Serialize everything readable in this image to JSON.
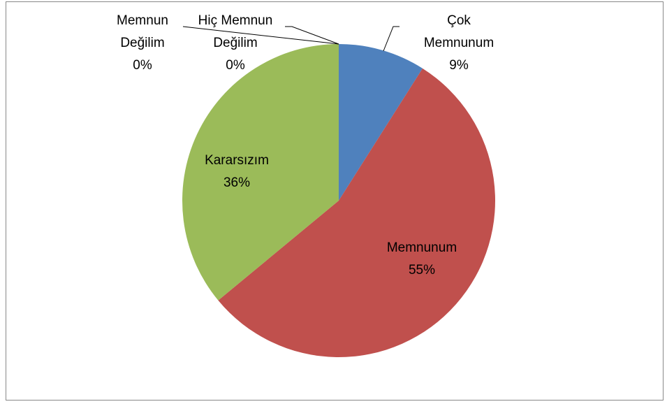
{
  "chart_data": {
    "type": "pie",
    "categories": [
      "Çok Memnunum",
      "Memnunum",
      "Kararsızım",
      "Memnun Değilim",
      "Hiç Memnun Değilim"
    ],
    "values": [
      9,
      55,
      36,
      0,
      0
    ],
    "value_labels": [
      "9%",
      "55%",
      "36%",
      "0%",
      "0%"
    ],
    "colors": [
      "#4f81bd",
      "#c0504d",
      "#9bbb59",
      "#8064a2",
      "#4bacc6"
    ]
  }
}
